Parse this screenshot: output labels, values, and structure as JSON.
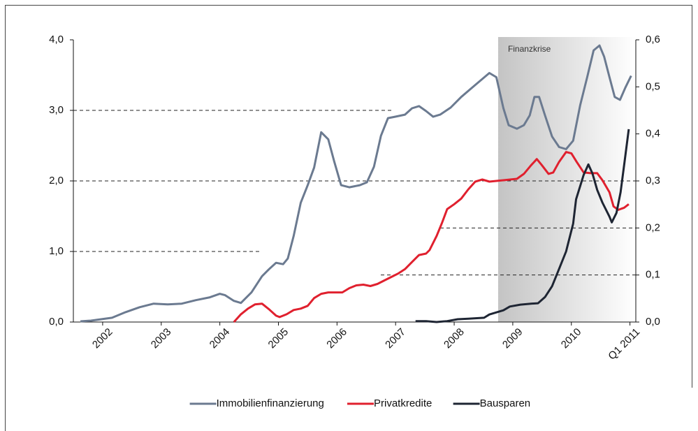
{
  "chart_data": {
    "type": "line",
    "xlim": [
      2001.5,
      2011.1
    ],
    "xticks": [
      {
        "value": 2002,
        "label": "2002"
      },
      {
        "value": 2003,
        "label": "2003"
      },
      {
        "value": 2004,
        "label": "2004"
      },
      {
        "value": 2005,
        "label": "2005"
      },
      {
        "value": 2006,
        "label": "2006"
      },
      {
        "value": 2007,
        "label": "2007"
      },
      {
        "value": 2008,
        "label": "2008"
      },
      {
        "value": 2009,
        "label": "2009"
      },
      {
        "value": 2010,
        "label": "2010"
      },
      {
        "value": 2011,
        "label": "Q1 2011"
      }
    ],
    "ylim": [
      0,
      4
    ],
    "yticks": [
      {
        "value": 0,
        "label": "0,0"
      },
      {
        "value": 1,
        "label": "1,0"
      },
      {
        "value": 2,
        "label": "2,0"
      },
      {
        "value": 3,
        "label": "3,0"
      },
      {
        "value": 4,
        "label": "4,0"
      }
    ],
    "y2lim": [
      0,
      0.6
    ],
    "y2ticks": [
      {
        "value": 0,
        "label": "0,0"
      },
      {
        "value": 0.1,
        "label": "0,1"
      },
      {
        "value": 0.2,
        "label": "0,2"
      },
      {
        "value": 0.3,
        "label": "0,3"
      },
      {
        "value": 0.4,
        "label": "0,4"
      },
      {
        "value": 0.5,
        "label": "0,5"
      },
      {
        "value": 0.6,
        "label": "0,6"
      }
    ],
    "grid": true,
    "legend": "bottom",
    "shaded_region": {
      "label": "Finanzkrise",
      "x": [
        2008.75,
        2011.1
      ]
    },
    "series": [
      {
        "name": "Immobilienfinanzierung",
        "color": "#6b7a90",
        "axis": "y",
        "x": [
          2001.62,
          2001.8,
          2002.16,
          2002.39,
          2002.63,
          2002.87,
          2003.11,
          2003.35,
          2003.59,
          2003.83,
          2004.0,
          2004.09,
          2004.24,
          2004.36,
          2004.54,
          2004.72,
          2004.84,
          2004.96,
          2005.08,
          2005.16,
          2005.26,
          2005.38,
          2005.5,
          2005.61,
          2005.73,
          2005.85,
          2005.95,
          2006.07,
          2006.21,
          2006.39,
          2006.51,
          2006.63,
          2006.75,
          2006.87,
          2006.99,
          2007.16,
          2007.28,
          2007.4,
          2007.52,
          2007.64,
          2007.76,
          2007.94,
          2008.12,
          2008.36,
          2008.6,
          2008.72,
          2008.84,
          2008.93,
          2009.07,
          2009.19,
          2009.29,
          2009.37,
          2009.45,
          2009.55,
          2009.67,
          2009.79,
          2009.91,
          2010.03,
          2010.15,
          2010.27,
          2010.38,
          2010.48,
          2010.56,
          2010.65,
          2010.74,
          2010.83,
          2010.92,
          2011.02
        ],
        "values": [
          0.01,
          0.02,
          0.06,
          0.14,
          0.21,
          0.26,
          0.25,
          0.26,
          0.31,
          0.35,
          0.4,
          0.38,
          0.3,
          0.27,
          0.42,
          0.65,
          0.75,
          0.84,
          0.82,
          0.9,
          1.22,
          1.69,
          1.94,
          2.19,
          2.69,
          2.59,
          2.28,
          1.94,
          1.91,
          1.94,
          1.98,
          2.2,
          2.64,
          2.89,
          2.91,
          2.94,
          3.03,
          3.06,
          2.99,
          2.91,
          2.94,
          3.04,
          3.19,
          3.36,
          3.53,
          3.47,
          3.03,
          2.79,
          2.74,
          2.79,
          2.93,
          3.19,
          3.19,
          2.93,
          2.63,
          2.48,
          2.45,
          2.57,
          3.07,
          3.47,
          3.85,
          3.92,
          3.76,
          3.47,
          3.19,
          3.15,
          3.32,
          3.49
        ]
      },
      {
        "name": "Privatkredite",
        "color": "#e0202e",
        "axis": "y",
        "x": [
          2004.24,
          2004.36,
          2004.48,
          2004.6,
          2004.72,
          2004.84,
          2004.96,
          2005.02,
          2005.14,
          2005.26,
          2005.38,
          2005.5,
          2005.61,
          2005.73,
          2005.85,
          2005.97,
          2006.09,
          2006.21,
          2006.33,
          2006.45,
          2006.57,
          2006.69,
          2006.81,
          2006.93,
          2007.05,
          2007.16,
          2007.28,
          2007.4,
          2007.52,
          2007.58,
          2007.7,
          2007.79,
          2007.88,
          2008.0,
          2008.12,
          2008.24,
          2008.36,
          2008.48,
          2008.6,
          2008.84,
          2009.07,
          2009.19,
          2009.31,
          2009.41,
          2009.49,
          2009.61,
          2009.69,
          2009.79,
          2009.91,
          2010.0,
          2010.09,
          2010.21,
          2010.33,
          2010.44,
          2010.53,
          2010.65,
          2010.72,
          2010.8,
          2010.9,
          2010.98
        ],
        "values": [
          0.0,
          0.11,
          0.19,
          0.25,
          0.26,
          0.18,
          0.09,
          0.07,
          0.11,
          0.17,
          0.19,
          0.23,
          0.34,
          0.4,
          0.42,
          0.42,
          0.42,
          0.48,
          0.52,
          0.53,
          0.51,
          0.54,
          0.59,
          0.64,
          0.69,
          0.75,
          0.85,
          0.95,
          0.97,
          1.02,
          1.22,
          1.4,
          1.6,
          1.67,
          1.75,
          1.88,
          1.99,
          2.02,
          1.99,
          2.01,
          2.03,
          2.1,
          2.22,
          2.31,
          2.23,
          2.1,
          2.12,
          2.27,
          2.41,
          2.39,
          2.27,
          2.12,
          2.11,
          2.11,
          2.01,
          1.84,
          1.64,
          1.59,
          1.62,
          1.67
        ]
      },
      {
        "name": "Bausparen",
        "color": "#1e2533",
        "axis": "y2",
        "x": [
          2007.34,
          2007.52,
          2007.7,
          2007.88,
          2008.06,
          2008.24,
          2008.51,
          2008.6,
          2008.84,
          2008.95,
          2009.13,
          2009.31,
          2009.43,
          2009.55,
          2009.67,
          2009.79,
          2009.91,
          2010.03,
          2010.08,
          2010.21,
          2010.29,
          2010.36,
          2010.44,
          2010.53,
          2010.65,
          2010.69,
          2010.77,
          2010.84,
          2010.91,
          2010.98
        ],
        "values": [
          0.002,
          0.002,
          0.0,
          0.002,
          0.006,
          0.007,
          0.009,
          0.016,
          0.025,
          0.033,
          0.037,
          0.039,
          0.04,
          0.053,
          0.076,
          0.113,
          0.15,
          0.209,
          0.261,
          0.313,
          0.335,
          0.316,
          0.281,
          0.254,
          0.224,
          0.212,
          0.232,
          0.276,
          0.343,
          0.41
        ]
      }
    ]
  }
}
